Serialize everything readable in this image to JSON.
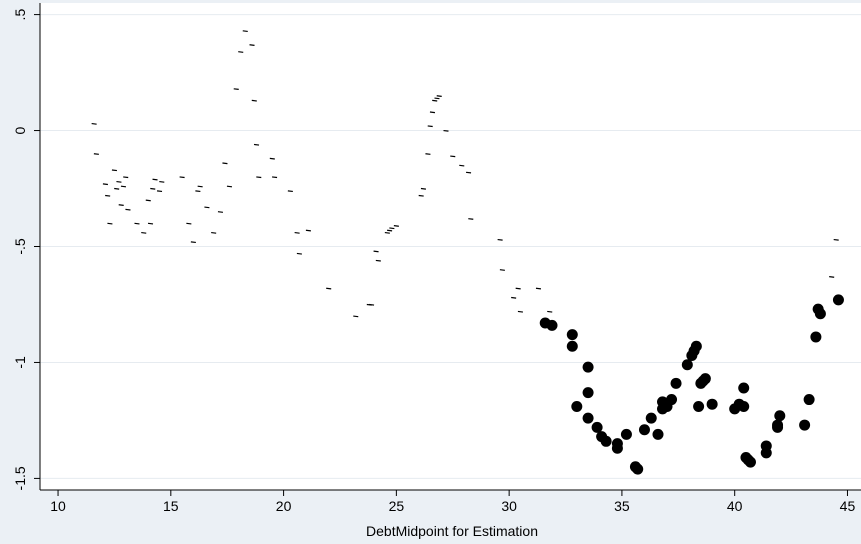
{
  "chart_data": {
    "type": "scatter",
    "title": "",
    "xlabel": "DebtMidpoint for Estimation",
    "ylabel": "",
    "xlim": [
      9.2,
      45.6
    ],
    "ylim": [
      -1.55,
      0.55
    ],
    "grid": true,
    "legend": "none",
    "x_ticks": [
      {
        "value": 10,
        "label": "10"
      },
      {
        "value": 15,
        "label": "15"
      },
      {
        "value": 20,
        "label": "20"
      },
      {
        "value": 25,
        "label": "25"
      },
      {
        "value": 30,
        "label": "30"
      },
      {
        "value": 35,
        "label": "35"
      },
      {
        "value": 40,
        "label": "40"
      },
      {
        "value": 45,
        "label": "45"
      }
    ],
    "y_ticks": [
      {
        "value": 0.5,
        "label": ".5"
      },
      {
        "value": 0,
        "label": "0"
      },
      {
        "value": -0.5,
        "label": "-.5"
      },
      {
        "value": -1,
        "label": "-1"
      },
      {
        "value": -1.5,
        "label": "-1.5"
      }
    ],
    "colors": {
      "background": "#ebf0f5",
      "plot_area": "#ffffff",
      "grid": "#e6ebf0",
      "marker": "#000000"
    },
    "series": [
      {
        "marker": "dash",
        "points": [
          [
            11.6,
            0.03
          ],
          [
            11.7,
            -0.1
          ],
          [
            12.1,
            -0.23
          ],
          [
            12.2,
            -0.28
          ],
          [
            12.3,
            -0.4
          ],
          [
            12.5,
            -0.17
          ],
          [
            12.6,
            -0.25
          ],
          [
            12.7,
            -0.22
          ],
          [
            12.8,
            -0.32
          ],
          [
            12.9,
            -0.24
          ],
          [
            13.0,
            -0.2
          ],
          [
            13.1,
            -0.34
          ],
          [
            13.5,
            -0.4
          ],
          [
            13.8,
            -0.44
          ],
          [
            14.0,
            -0.3
          ],
          [
            14.1,
            -0.4
          ],
          [
            14.2,
            -0.25
          ],
          [
            14.3,
            -0.21
          ],
          [
            14.5,
            -0.26
          ],
          [
            14.6,
            -0.22
          ],
          [
            15.5,
            -0.2
          ],
          [
            15.8,
            -0.4
          ],
          [
            16.0,
            -0.48
          ],
          [
            16.2,
            -0.26
          ],
          [
            16.3,
            -0.24
          ],
          [
            16.6,
            -0.33
          ],
          [
            16.9,
            -0.44
          ],
          [
            17.2,
            -0.35
          ],
          [
            17.4,
            -0.14
          ],
          [
            17.6,
            -0.24
          ],
          [
            17.9,
            0.18
          ],
          [
            18.1,
            0.34
          ],
          [
            18.3,
            0.43
          ],
          [
            18.6,
            0.37
          ],
          [
            18.7,
            0.13
          ],
          [
            18.8,
            -0.06
          ],
          [
            18.9,
            -0.2
          ],
          [
            19.5,
            -0.12
          ],
          [
            19.6,
            -0.2
          ],
          [
            20.3,
            -0.26
          ],
          [
            20.6,
            -0.44
          ],
          [
            20.7,
            -0.53
          ],
          [
            21.1,
            -0.43
          ],
          [
            22.0,
            -0.68
          ],
          [
            23.2,
            -0.8
          ],
          [
            23.8,
            -0.75
          ],
          [
            23.9,
            -0.75
          ],
          [
            24.1,
            -0.52
          ],
          [
            24.2,
            -0.56
          ],
          [
            24.6,
            -0.44
          ],
          [
            24.7,
            -0.43
          ],
          [
            24.8,
            -0.42
          ],
          [
            25.0,
            -0.41
          ],
          [
            26.1,
            -0.28
          ],
          [
            26.2,
            -0.25
          ],
          [
            26.4,
            -0.1
          ],
          [
            26.5,
            0.02
          ],
          [
            26.6,
            0.08
          ],
          [
            26.7,
            0.13
          ],
          [
            26.8,
            0.14
          ],
          [
            26.9,
            0.15
          ],
          [
            27.2,
            0.0
          ],
          [
            27.5,
            -0.11
          ],
          [
            27.9,
            -0.15
          ],
          [
            28.2,
            -0.18
          ],
          [
            28.3,
            -0.38
          ],
          [
            29.6,
            -0.47
          ],
          [
            29.7,
            -0.6
          ],
          [
            30.2,
            -0.72
          ],
          [
            30.4,
            -0.68
          ],
          [
            30.5,
            -0.78
          ],
          [
            31.3,
            -0.68
          ],
          [
            31.8,
            -0.78
          ],
          [
            44.3,
            -0.63
          ],
          [
            44.5,
            -0.47
          ]
        ]
      },
      {
        "marker": "filled-circle",
        "points": [
          [
            31.6,
            -0.83
          ],
          [
            31.9,
            -0.84
          ],
          [
            32.8,
            -0.88
          ],
          [
            32.8,
            -0.93
          ],
          [
            33.0,
            -1.19
          ],
          [
            33.5,
            -1.02
          ],
          [
            33.5,
            -1.13
          ],
          [
            33.5,
            -1.24
          ],
          [
            33.9,
            -1.28
          ],
          [
            34.1,
            -1.32
          ],
          [
            34.3,
            -1.34
          ],
          [
            34.8,
            -1.37
          ],
          [
            34.8,
            -1.35
          ],
          [
            35.2,
            -1.31
          ],
          [
            35.6,
            -1.45
          ],
          [
            35.7,
            -1.46
          ],
          [
            36.0,
            -1.29
          ],
          [
            36.3,
            -1.24
          ],
          [
            36.6,
            -1.31
          ],
          [
            36.8,
            -1.17
          ],
          [
            36.8,
            -1.2
          ],
          [
            37.0,
            -1.19
          ],
          [
            37.2,
            -1.16
          ],
          [
            37.4,
            -1.09
          ],
          [
            37.9,
            -1.01
          ],
          [
            38.1,
            -0.97
          ],
          [
            38.2,
            -0.95
          ],
          [
            38.3,
            -0.93
          ],
          [
            38.4,
            -1.19
          ],
          [
            38.5,
            -1.09
          ],
          [
            38.6,
            -1.08
          ],
          [
            38.7,
            -1.07
          ],
          [
            39.0,
            -1.18
          ],
          [
            40.0,
            -1.2
          ],
          [
            40.2,
            -1.18
          ],
          [
            40.4,
            -1.19
          ],
          [
            40.4,
            -1.11
          ],
          [
            40.5,
            -1.41
          ],
          [
            40.6,
            -1.42
          ],
          [
            40.7,
            -1.43
          ],
          [
            41.4,
            -1.36
          ],
          [
            41.4,
            -1.39
          ],
          [
            41.9,
            -1.27
          ],
          [
            41.9,
            -1.28
          ],
          [
            42.0,
            -1.23
          ],
          [
            43.1,
            -1.27
          ],
          [
            43.3,
            -1.16
          ],
          [
            43.6,
            -0.89
          ],
          [
            43.7,
            -0.77
          ],
          [
            43.8,
            -0.79
          ],
          [
            44.6,
            -0.73
          ]
        ]
      }
    ]
  }
}
